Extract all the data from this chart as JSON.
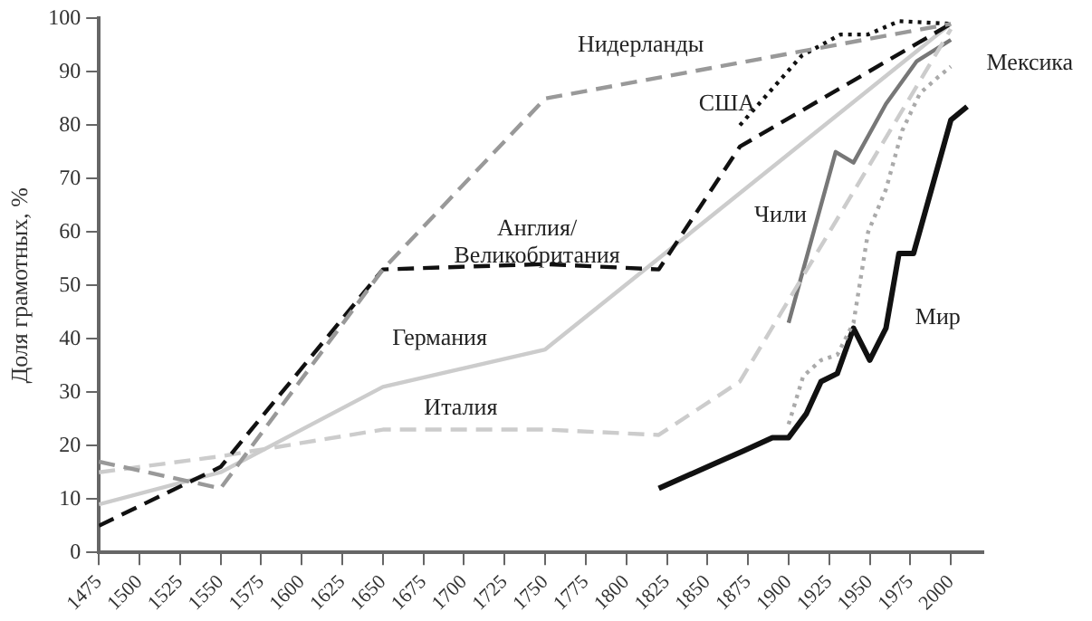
{
  "chart_data": {
    "type": "line",
    "ylabel": "Доля грамотных, %",
    "xlim": [
      1475,
      2020
    ],
    "xticks": [
      1475,
      1500,
      1525,
      1550,
      1575,
      1600,
      1625,
      1650,
      1675,
      1700,
      1725,
      1750,
      1775,
      1800,
      1825,
      1850,
      1875,
      1900,
      1925,
      1950,
      1975,
      2000
    ],
    "ylim": [
      0,
      100
    ],
    "yticks": [
      0,
      10,
      20,
      30,
      40,
      50,
      60,
      70,
      80,
      90,
      100
    ],
    "grid": false,
    "legend": false,
    "marker": "none",
    "series": [
      {
        "name": "Нидерланды",
        "color": "#999999",
        "line_style": "dashed",
        "x": [
          1475,
          1550,
          1650,
          1750,
          2000
        ],
        "values": [
          17,
          12,
          53,
          85,
          99
        ]
      },
      {
        "name": "Англия/ Великобритания",
        "color": "#111111",
        "line_style": "dashed",
        "x": [
          1475,
          1550,
          1650,
          1750,
          1820,
          1870,
          2000
        ],
        "values": [
          5,
          16,
          53,
          54,
          53,
          76,
          99
        ]
      },
      {
        "name": "США",
        "color": "#111111",
        "line_style": "dotted",
        "x": [
          1870,
          1908,
          1932,
          1949,
          1968,
          2000
        ],
        "values": [
          80,
          93,
          97,
          97,
          99.5,
          99
        ]
      },
      {
        "name": "Германия",
        "color": "#cccccc",
        "line_style": "solid",
        "x": [
          1475,
          1550,
          1650,
          1750,
          2000
        ],
        "values": [
          9,
          15,
          31,
          38,
          99
        ]
      },
      {
        "name": "Италия",
        "color": "#cccccc",
        "line_style": "dashed",
        "x": [
          1475,
          1550,
          1650,
          1750,
          1820,
          1870,
          2000
        ],
        "values": [
          15,
          18,
          23,
          23,
          22,
          32,
          98
        ]
      },
      {
        "name": "Чили",
        "color": "#777777",
        "line_style": "solid",
        "x": [
          1900,
          1929,
          1940,
          1960,
          1979,
          2000
        ],
        "values": [
          43,
          75,
          73,
          84,
          92,
          96
        ]
      },
      {
        "name": "Мексика",
        "color": "#aaaaaa",
        "line_style": "dotted",
        "x": [
          1900,
          1909,
          1920,
          1930,
          1940,
          1949,
          1960,
          1970,
          1981,
          1992,
          2000
        ],
        "values": [
          24,
          33,
          36,
          37,
          43,
          60,
          68,
          79,
          86,
          89,
          91
        ]
      },
      {
        "name": "Мир",
        "color": "#111111",
        "line_style": "solid",
        "x": [
          1820,
          1872,
          1890,
          1900,
          1911,
          1920,
          1930,
          1940,
          1950,
          1960,
          1968,
          1977,
          2000,
          2010
        ],
        "values": [
          12,
          19,
          21.5,
          21.5,
          26,
          32,
          33.5,
          42,
          36,
          42,
          56,
          56,
          81,
          83.5
        ]
      }
    ]
  }
}
